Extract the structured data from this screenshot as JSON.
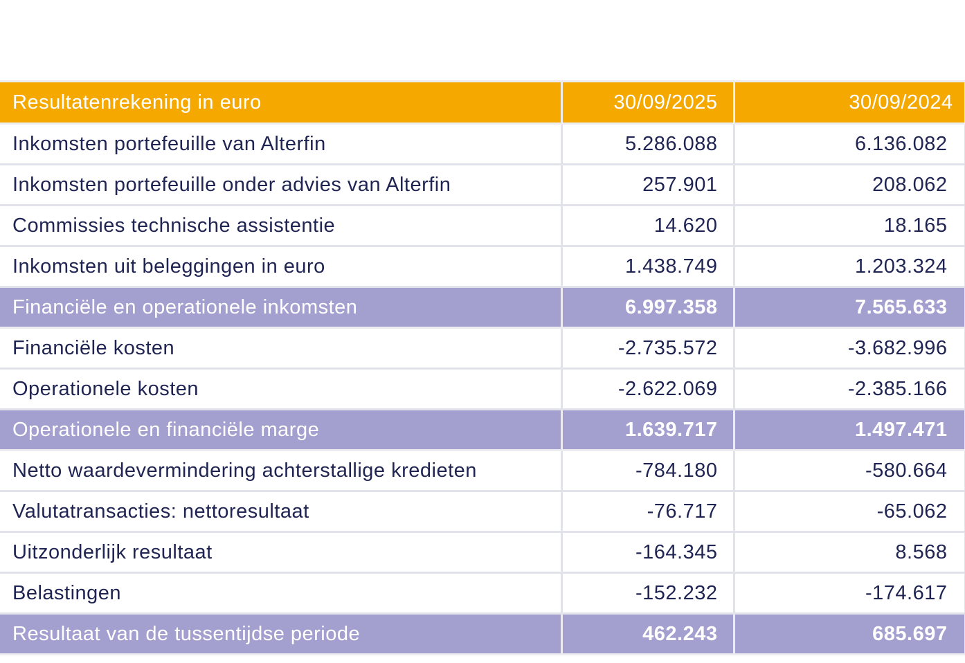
{
  "table": {
    "header": {
      "label": "Resultatenrekening in euro",
      "col1": "30/09/2025",
      "col2": "30/09/2024"
    },
    "rows": [
      {
        "label": "Inkomsten portefeuille van Alterfin",
        "v2025": "5.286.088",
        "v2024": "6.136.082",
        "type": "normal"
      },
      {
        "label": "Inkomsten portefeuille onder advies van Alterfin",
        "v2025": "257.901",
        "v2024": "208.062",
        "type": "normal"
      },
      {
        "label": "Commissies technische assistentie",
        "v2025": "14.620",
        "v2024": "18.165",
        "type": "normal"
      },
      {
        "label": "Inkomsten uit beleggingen in euro",
        "v2025": "1.438.749",
        "v2024": "1.203.324",
        "type": "normal"
      },
      {
        "label": "Financiële en operationele inkomsten",
        "v2025": "6.997.358",
        "v2024": "7.565.633",
        "type": "total"
      },
      {
        "label": "Financiële kosten",
        "v2025": "-2.735.572",
        "v2024": "-3.682.996",
        "type": "normal"
      },
      {
        "label": "Operationele kosten",
        "v2025": "-2.622.069",
        "v2024": "-2.385.166",
        "type": "normal"
      },
      {
        "label": "Operationele en financiële marge",
        "v2025": "1.639.717",
        "v2024": "1.497.471",
        "type": "total"
      },
      {
        "label": "Netto waardevermindering achterstallige kredieten",
        "v2025": "-784.180",
        "v2024": "-580.664",
        "type": "normal"
      },
      {
        "label": "Valutatransacties: nettoresultaat",
        "v2025": "-76.717",
        "v2024": "-65.062",
        "type": "normal"
      },
      {
        "label": "Uitzonderlijk resultaat",
        "v2025": "-164.345",
        "v2024": "8.568",
        "type": "normal"
      },
      {
        "label": "Belastingen",
        "v2025": "-152.232",
        "v2024": "-174.617",
        "type": "normal"
      },
      {
        "label": "Resultaat van de tussentijdse periode",
        "v2025": "462.243",
        "v2024": "685.697",
        "type": "total"
      }
    ]
  },
  "colors": {
    "header_bg": "#f5a800",
    "total_bg": "#a3a0cf",
    "text": "#1f2452"
  }
}
